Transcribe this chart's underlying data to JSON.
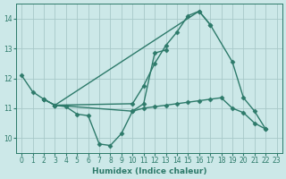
{
  "background_color": "#cce8e8",
  "grid_color": "#a8c8c8",
  "line_color": "#2d7a6a",
  "series": [
    {
      "x": [
        0,
        1,
        2,
        3,
        4,
        5,
        6,
        7,
        8,
        9,
        10,
        11,
        12,
        13
      ],
      "y": [
        12.1,
        11.55,
        11.3,
        11.1,
        11.05,
        10.8,
        10.75,
        9.8,
        9.75,
        10.15,
        10.9,
        11.15,
        12.85,
        12.95
      ]
    },
    {
      "x": [
        2,
        3,
        10,
        11,
        12,
        13,
        14,
        15,
        16,
        17
      ],
      "y": [
        11.3,
        11.1,
        11.15,
        11.75,
        12.5,
        13.1,
        13.55,
        14.1,
        14.25,
        13.8
      ]
    },
    {
      "x": [
        2,
        3,
        10,
        11,
        12,
        13,
        14,
        15,
        16,
        17,
        18,
        19,
        20,
        21,
        22
      ],
      "y": [
        11.3,
        11.1,
        10.9,
        11.0,
        11.05,
        11.1,
        11.15,
        11.2,
        11.25,
        11.3,
        11.35,
        11.0,
        10.85,
        10.5,
        10.3
      ]
    },
    {
      "x": [
        3,
        16,
        17,
        19,
        20,
        21,
        22
      ],
      "y": [
        11.1,
        14.25,
        13.8,
        12.55,
        11.35,
        10.9,
        10.3
      ]
    }
  ],
  "xlim": [
    -0.5,
    23.5
  ],
  "ylim": [
    9.5,
    14.5
  ],
  "yticks": [
    10,
    11,
    12,
    13,
    14
  ],
  "xticks": [
    0,
    1,
    2,
    3,
    4,
    5,
    6,
    7,
    8,
    9,
    10,
    11,
    12,
    13,
    14,
    15,
    16,
    17,
    18,
    19,
    20,
    21,
    22,
    23
  ],
  "xlabel": "Humidex (Indice chaleur)",
  "marker": "D",
  "marker_size": 2.5,
  "line_width": 1.0
}
